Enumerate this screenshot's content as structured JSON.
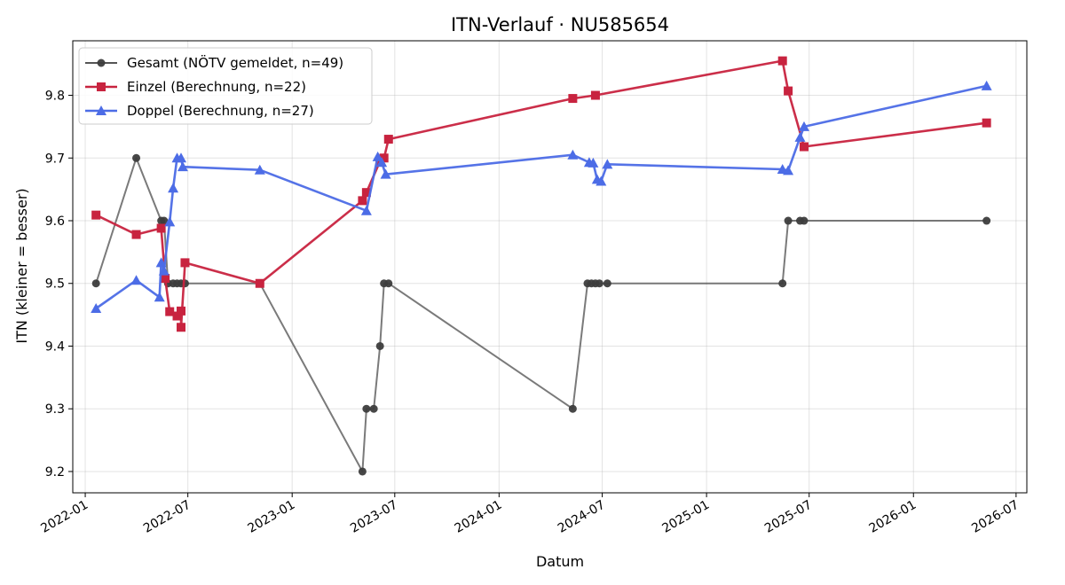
{
  "chart_data": {
    "type": "line",
    "title": "ITN-Verlauf · NU585654",
    "xlabel": "Datum",
    "ylabel": "ITN  (kleiner = besser)",
    "x_ticks": [
      "2022-01",
      "2022-07",
      "2023-01",
      "2023-07",
      "2024-01",
      "2024-07",
      "2025-01",
      "2025-07",
      "2026-01",
      "2026-07"
    ],
    "y_ticks": [
      "9.2",
      "9.3",
      "9.4",
      "9.5",
      "9.6",
      "9.7",
      "9.8"
    ],
    "xlim": [
      "2021-12-10",
      "2026-07-20"
    ],
    "ylim": [
      9.166,
      9.887
    ],
    "grid": true,
    "legend_position": "top-left",
    "series": [
      {
        "name": "Gesamt (NÖTV gemeldet, n=49)",
        "color": "#555555",
        "marker": "circle",
        "points": [
          [
            "2022-01-20",
            9.5
          ],
          [
            "2022-04-01",
            9.7
          ],
          [
            "2022-05-15",
            9.6
          ],
          [
            "2022-05-20",
            9.6
          ],
          [
            "2022-05-27",
            9.5
          ],
          [
            "2022-06-05",
            9.5
          ],
          [
            "2022-06-12",
            9.5
          ],
          [
            "2022-06-19",
            9.5
          ],
          [
            "2022-06-26",
            9.5
          ],
          [
            "2022-11-05",
            9.5
          ],
          [
            "2023-05-05",
            9.2
          ],
          [
            "2023-05-12",
            9.3
          ],
          [
            "2023-05-25",
            9.3
          ],
          [
            "2023-06-05",
            9.4
          ],
          [
            "2023-06-12",
            9.5
          ],
          [
            "2023-06-20",
            9.5
          ],
          [
            "2024-05-10",
            9.3
          ],
          [
            "2024-06-05",
            9.5
          ],
          [
            "2024-06-12",
            9.5
          ],
          [
            "2024-06-19",
            9.5
          ],
          [
            "2024-06-26",
            9.5
          ],
          [
            "2024-07-10",
            9.5
          ],
          [
            "2025-05-15",
            9.5
          ],
          [
            "2025-05-25",
            9.6
          ],
          [
            "2025-06-15",
            9.6
          ],
          [
            "2025-06-22",
            9.6
          ],
          [
            "2026-05-10",
            9.6
          ]
        ]
      },
      {
        "name": "Einzel (Berechnung, n=22)",
        "color": "#c8233f",
        "marker": "square",
        "points": [
          [
            "2022-01-20",
            9.609
          ],
          [
            "2022-04-01",
            9.578
          ],
          [
            "2022-05-15",
            9.588
          ],
          [
            "2022-05-22",
            9.508
          ],
          [
            "2022-05-30",
            9.455
          ],
          [
            "2022-06-12",
            9.448
          ],
          [
            "2022-06-19",
            9.456
          ],
          [
            "2022-06-19",
            9.43
          ],
          [
            "2022-06-26",
            9.533
          ],
          [
            "2022-11-05",
            9.5
          ],
          [
            "2023-05-05",
            9.632
          ],
          [
            "2023-05-12",
            9.645
          ],
          [
            "2023-06-05",
            9.695
          ],
          [
            "2023-06-12",
            9.7
          ],
          [
            "2023-06-20",
            9.73
          ],
          [
            "2024-05-10",
            9.795
          ],
          [
            "2024-06-19",
            9.8
          ],
          [
            "2025-05-15",
            9.855
          ],
          [
            "2025-05-25",
            9.807
          ],
          [
            "2025-06-22",
            9.718
          ],
          [
            "2026-05-10",
            9.756
          ]
        ]
      },
      {
        "name": "Doppel (Berechnung, n=27)",
        "color": "#4c6ce6",
        "marker": "triangle",
        "points": [
          [
            "2022-01-20",
            9.46
          ],
          [
            "2022-04-01",
            9.505
          ],
          [
            "2022-05-12",
            9.478
          ],
          [
            "2022-05-15",
            9.533
          ],
          [
            "2022-05-20",
            9.52
          ],
          [
            "2022-05-30",
            9.598
          ],
          [
            "2022-06-05",
            9.652
          ],
          [
            "2022-06-12",
            9.7
          ],
          [
            "2022-06-19",
            9.7
          ],
          [
            "2022-06-22",
            9.686
          ],
          [
            "2022-11-05",
            9.681
          ],
          [
            "2023-05-12",
            9.616
          ],
          [
            "2023-06-01",
            9.702
          ],
          [
            "2023-06-08",
            9.693
          ],
          [
            "2023-06-15",
            9.674
          ],
          [
            "2024-05-10",
            9.705
          ],
          [
            "2024-06-08",
            9.693
          ],
          [
            "2024-06-15",
            9.692
          ],
          [
            "2024-06-22",
            9.666
          ],
          [
            "2024-06-29",
            9.663
          ],
          [
            "2024-07-10",
            9.69
          ],
          [
            "2025-05-15",
            9.682
          ],
          [
            "2025-05-25",
            9.68
          ],
          [
            "2025-06-15",
            9.733
          ],
          [
            "2025-06-22",
            9.75
          ],
          [
            "2026-05-10",
            9.815
          ]
        ]
      }
    ]
  }
}
